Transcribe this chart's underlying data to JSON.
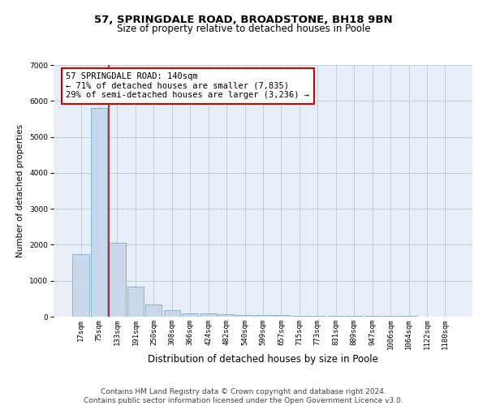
{
  "title1": "57, SPRINGDALE ROAD, BROADSTONE, BH18 9BN",
  "title2": "Size of property relative to detached houses in Poole",
  "xlabel": "Distribution of detached houses by size in Poole",
  "ylabel": "Number of detached properties",
  "bar_color": "#c8d8ea",
  "bar_edge_color": "#7aaac8",
  "background_color": "#e8eef8",
  "categories": [
    "17sqm",
    "75sqm",
    "133sqm",
    "191sqm",
    "250sqm",
    "308sqm",
    "366sqm",
    "424sqm",
    "482sqm",
    "540sqm",
    "599sqm",
    "657sqm",
    "715sqm",
    "773sqm",
    "831sqm",
    "889sqm",
    "947sqm",
    "1006sqm",
    "1064sqm",
    "1122sqm",
    "1180sqm"
  ],
  "values": [
    1750,
    5800,
    2050,
    830,
    330,
    180,
    100,
    90,
    60,
    50,
    40,
    50,
    30,
    30,
    30,
    30,
    20,
    20,
    15,
    10,
    10
  ],
  "redline_index": 2,
  "redline_color": "#cc0000",
  "annotation_text": "57 SPRINGDALE ROAD: 140sqm\n← 71% of detached houses are smaller (7,835)\n29% of semi-detached houses are larger (3,236) →",
  "annotation_box_color": "#cc0000",
  "annotation_fill": "white",
  "ylim": [
    0,
    7000
  ],
  "yticks": [
    0,
    1000,
    2000,
    3000,
    4000,
    5000,
    6000,
    7000
  ],
  "footer_text": "Contains HM Land Registry data © Crown copyright and database right 2024.\nContains public sector information licensed under the Open Government Licence v3.0.",
  "grid_color": "#c0ccd8",
  "title1_fontsize": 9.5,
  "title2_fontsize": 8.5,
  "xlabel_fontsize": 8.5,
  "ylabel_fontsize": 7.5,
  "tick_fontsize": 6.5,
  "annotation_fontsize": 7.5,
  "footer_fontsize": 6.5
}
